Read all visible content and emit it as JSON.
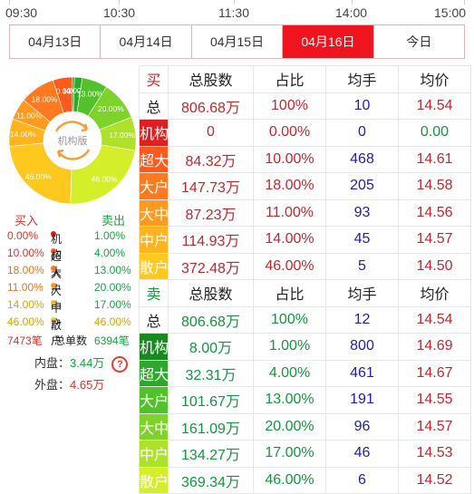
{
  "time_axis": {
    "labels": [
      "09:30",
      "10:30",
      "11:30",
      "14:00",
      "15:00"
    ]
  },
  "date_tabs": {
    "tabs": [
      "04月13日",
      "04月14日",
      "04月15日",
      "04月16日",
      "今日"
    ],
    "active_index": 3
  },
  "pie": {
    "center_label": "机构版",
    "chart_data": {
      "type": "pie",
      "rings": [
        {
          "name": "买入",
          "slices": [
            {
              "label": "0.00%",
              "value": 0.0,
              "color": "#e02020"
            },
            {
              "label": "10.00%",
              "value": 10.0,
              "color": "#ff5a1e"
            },
            {
              "label": "18.00%",
              "value": 18.0,
              "color": "#ff7a1e"
            },
            {
              "label": "11.00%",
              "value": 11.0,
              "color": "#ff9a1e"
            },
            {
              "label": "14.00%",
              "value": 14.0,
              "color": "#ffb41e"
            },
            {
              "label": "46.00%",
              "value": 46.0,
              "color": "#ffc81e"
            }
          ]
        },
        {
          "name": "卖出",
          "slices": [
            {
              "label": "1.00%",
              "value": 1.0,
              "color": "#1a8a20"
            },
            {
              "label": "4.00%",
              "value": 4.0,
              "color": "#2ea82a"
            },
            {
              "label": "13.00%",
              "value": 13.0,
              "color": "#52c22a"
            },
            {
              "label": "20.00%",
              "value": 20.0,
              "color": "#7ed32a"
            },
            {
              "label": "17.00%",
              "value": 17.0,
              "color": "#aee22a"
            },
            {
              "label": "46.00%",
              "value": 46.0,
              "color": "#d4ee2a"
            }
          ]
        }
      ]
    }
  },
  "legend": {
    "buy_header": "买入",
    "sell_header": "卖出",
    "rows": [
      {
        "buy": "0.00%",
        "label": "机构",
        "sell": "1.00%"
      },
      {
        "buy": "10.00%",
        "label": "超大",
        "sell": "4.00%"
      },
      {
        "buy": "18.00%",
        "label": "大户",
        "sell": "13.00%"
      },
      {
        "buy": "11.00%",
        "label": "大中",
        "sell": "20.00%"
      },
      {
        "buy": "14.00%",
        "label": "中户",
        "sell": "17.00%"
      },
      {
        "buy": "46.00%",
        "label": "散户",
        "sell": "46.00%"
      }
    ],
    "order_buy": "7473笔",
    "order_label": "总单数",
    "order_sell": "6394笔",
    "neipan_label": "内盘：",
    "neipan_value": "3.44万",
    "waipan_label": "外盘：",
    "waipan_value": "4.65万",
    "help": "?"
  },
  "table": {
    "headers": [
      "总股数",
      "占比",
      "均手",
      "均价"
    ],
    "buy": {
      "label": "买",
      "rows": [
        {
          "label": "总",
          "shares": "806.68万",
          "ratio": "100%",
          "avg_lot": "10",
          "avg_price": "14.54"
        },
        {
          "label": "机构",
          "shares": "0",
          "ratio": "0.00%",
          "avg_lot": "0",
          "avg_price": "0.00"
        },
        {
          "label": "超大",
          "shares": "84.32万",
          "ratio": "10.00%",
          "avg_lot": "468",
          "avg_price": "14.61"
        },
        {
          "label": "大户",
          "shares": "147.73万",
          "ratio": "18.00%",
          "avg_lot": "205",
          "avg_price": "14.58"
        },
        {
          "label": "大中",
          "shares": "87.23万",
          "ratio": "11.00%",
          "avg_lot": "93",
          "avg_price": "14.56"
        },
        {
          "label": "中户",
          "shares": "114.93万",
          "ratio": "14.00%",
          "avg_lot": "45",
          "avg_price": "14.57"
        },
        {
          "label": "散户",
          "shares": "372.48万",
          "ratio": "46.00%",
          "avg_lot": "5",
          "avg_price": "14.50"
        }
      ]
    },
    "sell": {
      "label": "卖",
      "rows": [
        {
          "label": "总",
          "shares": "806.68万",
          "ratio": "100%",
          "avg_lot": "12",
          "avg_price": "14.54"
        },
        {
          "label": "机构",
          "shares": "8.00万",
          "ratio": "1.00%",
          "avg_lot": "800",
          "avg_price": "14.69"
        },
        {
          "label": "超大",
          "shares": "32.31万",
          "ratio": "4.00%",
          "avg_lot": "461",
          "avg_price": "14.67"
        },
        {
          "label": "大户",
          "shares": "101.67万",
          "ratio": "13.00%",
          "avg_lot": "191",
          "avg_price": "14.55"
        },
        {
          "label": "大中",
          "shares": "161.09万",
          "ratio": "20.00%",
          "avg_lot": "96",
          "avg_price": "14.57"
        },
        {
          "label": "中户",
          "shares": "134.27万",
          "ratio": "17.00%",
          "avg_lot": "46",
          "avg_price": "14.53"
        },
        {
          "label": "散户",
          "shares": "369.34万",
          "ratio": "46.00%",
          "avg_lot": "6",
          "avg_price": "14.52"
        }
      ]
    }
  },
  "colors": {
    "active_tab": "#f0141e",
    "buy_labels": [
      "#e02020",
      "#ff5a1e",
      "#ff7a1e",
      "#ff9a1e",
      "#ffb41e",
      "#ffc81e"
    ],
    "sell_labels": [
      "#1a8a20",
      "#2ea82a",
      "#52c22a",
      "#7ed32a",
      "#aee22a",
      "#d4ee2a"
    ]
  }
}
